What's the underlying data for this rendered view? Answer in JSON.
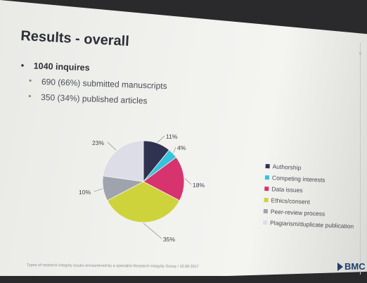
{
  "slide": {
    "title": "Results - overall",
    "bullets": {
      "main": "1040 inquires",
      "sub": [
        "690 (66%) submitted manuscripts",
        "350 (34%) published articles"
      ]
    },
    "footer": "Types of research integrity issues encountered by a specialist Research Integrity Group / 10.09.2017",
    "logo": "BMC",
    "page_mark": "5"
  },
  "chart_data": {
    "type": "pie",
    "start": "12 o'clock",
    "direction": "clockwise",
    "slices": [
      {
        "label": "Authorship",
        "value": 11,
        "value_label": "11%",
        "color": "#2f3350"
      },
      {
        "label": "Competing interests",
        "value": 4,
        "value_label": "4%",
        "color": "#35c3dd"
      },
      {
        "label": "Data issues",
        "value": 18,
        "value_label": "18%",
        "color": "#d6336f"
      },
      {
        "label": "Ethics/consent",
        "value": 35,
        "value_label": "35%",
        "color": "#cfd33b"
      },
      {
        "label": "Peer-review process",
        "value": 10,
        "value_label": "10%",
        "color": "#9fa3ad"
      },
      {
        "label": "Plagiarism/duplicate publication",
        "value": 23,
        "value_label": "23%",
        "color": "#dcdde6"
      }
    ],
    "legend_position": "right"
  }
}
